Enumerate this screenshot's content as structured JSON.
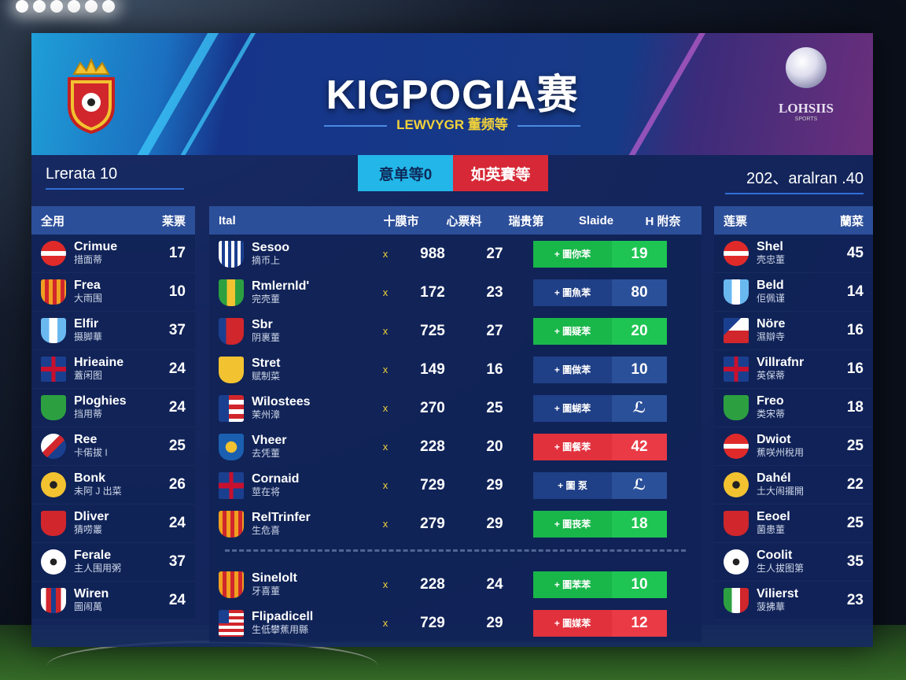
{
  "banner": {
    "title": "KIGPOGIA赛",
    "subtitle": "LEWVYGR 董频等",
    "right_logo_text": "LOHSIIS",
    "right_logo_small": "SPORTS"
  },
  "header_left": "Lrerata 10",
  "header_right": "202、aralran .40",
  "tabs": [
    {
      "label": "意单等0",
      "color": "#23b6e8"
    },
    {
      "label": "如英賽等",
      "color": "#d62836"
    }
  ],
  "left_table": {
    "col1": "全用",
    "col2": "莱票",
    "rows": [
      {
        "name": "Crimue",
        "sub": "措面蒂",
        "pts": "17",
        "icon": "red-white-flag-icon"
      },
      {
        "name": "Frea",
        "sub": "大雨围",
        "pts": "10",
        "icon": "orange-shield-icon"
      },
      {
        "name": "Elfir",
        "sub": "摄脚華",
        "pts": "37",
        "icon": "blue-shield-icon"
      },
      {
        "name": "Hrieaine",
        "sub": "蓋闲图",
        "pts": "24",
        "icon": "union-jack-icon"
      },
      {
        "name": "Ploghies",
        "sub": "挡用蒂",
        "pts": "24",
        "icon": "green-shield-icon"
      },
      {
        "name": "Ree",
        "sub": "卡偌拔 I",
        "pts": "25",
        "icon": "blue-red-ball-icon"
      },
      {
        "name": "Bonk",
        "sub": "未阿 J 出菜",
        "pts": "26",
        "icon": "yellow-badge-icon"
      },
      {
        "name": "Dliver",
        "sub": "猜唠叢",
        "pts": "24",
        "icon": "red-badge-icon"
      },
      {
        "name": "Ferale",
        "sub": "主人围用粥",
        "pts": "37",
        "icon": "soccer-ball-icon"
      },
      {
        "name": "Wiren",
        "sub": "圖闹萬",
        "pts": "24",
        "icon": "striped-shield-icon"
      }
    ]
  },
  "center_table": {
    "headers": [
      "Ital",
      "十膜市",
      "心票料",
      "瑞贵第",
      "Slaide",
      "H 附奈"
    ],
    "rows": [
      {
        "name": "Sesoo",
        "sub": "摘币上",
        "mark": "x",
        "v1": "988",
        "v2": "27",
        "bar_label": "+ 圖你苯",
        "bar_val": "19",
        "bar": "green",
        "icon": "us-shield-icon"
      },
      {
        "name": "Rmlernld'",
        "sub": "完壳董",
        "mark": "x",
        "v1": "172",
        "v2": "23",
        "bar_label": "+ 圖魚苯",
        "bar_val": "80",
        "bar": "navy",
        "icon": "brazil-shield-icon"
      },
      {
        "name": "Sbr",
        "sub": "阴裹董",
        "mark": "x",
        "v1": "725",
        "v2": "27",
        "bar_label": "+ 圖疑苯",
        "bar_val": "20",
        "bar": "green",
        "icon": "red-blue-shield-icon"
      },
      {
        "name": "Stret",
        "sub": "赋制菜",
        "mark": "x",
        "v1": "149",
        "v2": "16",
        "bar_label": "+ 圖做苯",
        "bar_val": "10",
        "bar": "navy",
        "icon": "yellow-shield-icon"
      },
      {
        "name": "Wilostees",
        "sub": "茉州漳",
        "mark": "x",
        "v1": "270",
        "v2": "25",
        "bar_label": "+ 圖蝴苯",
        "bar_val": "ℒ",
        "bar": "navy",
        "icon": "puerto-rico-flag-icon"
      },
      {
        "name": "Vheer",
        "sub": "去凭董",
        "mark": "x",
        "v1": "228",
        "v2": "20",
        "bar_label": "+ 圖餐苯",
        "bar_val": "42",
        "bar": "red",
        "icon": "blue-gold-shield-icon"
      },
      {
        "name": "Cornaid",
        "sub": "莖在将",
        "mark": "x",
        "v1": "729",
        "v2": "29",
        "bar_label": "+ 圖 泵",
        "bar_val": "ℒ",
        "bar": "navy",
        "icon": "union-jack-icon"
      },
      {
        "name": "RelTrinfer",
        "sub": "生危喜",
        "mark": "x",
        "v1": "279",
        "v2": "29",
        "bar_label": "+ 圖丧苯",
        "bar_val": "18",
        "bar": "green",
        "icon": "orange-shield-icon"
      },
      {
        "name": "Sinelolt",
        "sub": "牙喜董",
        "mark": "x",
        "v1": "228",
        "v2": "24",
        "bar_label": "+ 圖苯苯",
        "bar_val": "10",
        "bar": "green",
        "icon": "orange-shield-icon"
      },
      {
        "name": "Flipadicell",
        "sub": "生低攀蕉用縣",
        "mark": "x",
        "v1": "729",
        "v2": "29",
        "bar_label": "+ 圖媒苯",
        "bar_val": "12",
        "bar": "red",
        "icon": "us-flag-icon"
      }
    ]
  },
  "right_table": {
    "col1": "莲票",
    "col2": "蘭菜",
    "rows": [
      {
        "name": "Shel",
        "sub": "壳忠董",
        "pts": "45",
        "icon": "red-white-flag-icon"
      },
      {
        "name": "Beld",
        "sub": "佢佩谨",
        "pts": "14",
        "icon": "blue-shield-icon"
      },
      {
        "name": "Nöre",
        "sub": "濕辯寺",
        "pts": "16",
        "icon": "czech-flag-icon"
      },
      {
        "name": "Villrafnr",
        "sub": "英保蒂",
        "pts": "16",
        "icon": "union-jack-icon"
      },
      {
        "name": "Freo",
        "sub": "类宋蒂",
        "pts": "18",
        "icon": "green-shield-icon"
      },
      {
        "name": "Dwiot",
        "sub": "蕉咲州稅用",
        "pts": "25",
        "icon": "red-white-flag-icon"
      },
      {
        "name": "Dahél",
        "sub": "土大闹擺開",
        "pts": "22",
        "icon": "yellow-badge-icon"
      },
      {
        "name": "Eeoel",
        "sub": "菌患董",
        "pts": "25",
        "icon": "red-badge-icon"
      },
      {
        "name": "Coolit",
        "sub": "生人拔图第",
        "pts": "35",
        "icon": "soccer-ball-icon"
      },
      {
        "name": "Vilierst",
        "sub": "菠拂華",
        "pts": "23",
        "icon": "italy-shield-icon"
      }
    ]
  },
  "colors": {
    "green": "#19b64a",
    "red": "#e0313d",
    "navy": "#1f3f86",
    "accent": "#23b6e8"
  }
}
